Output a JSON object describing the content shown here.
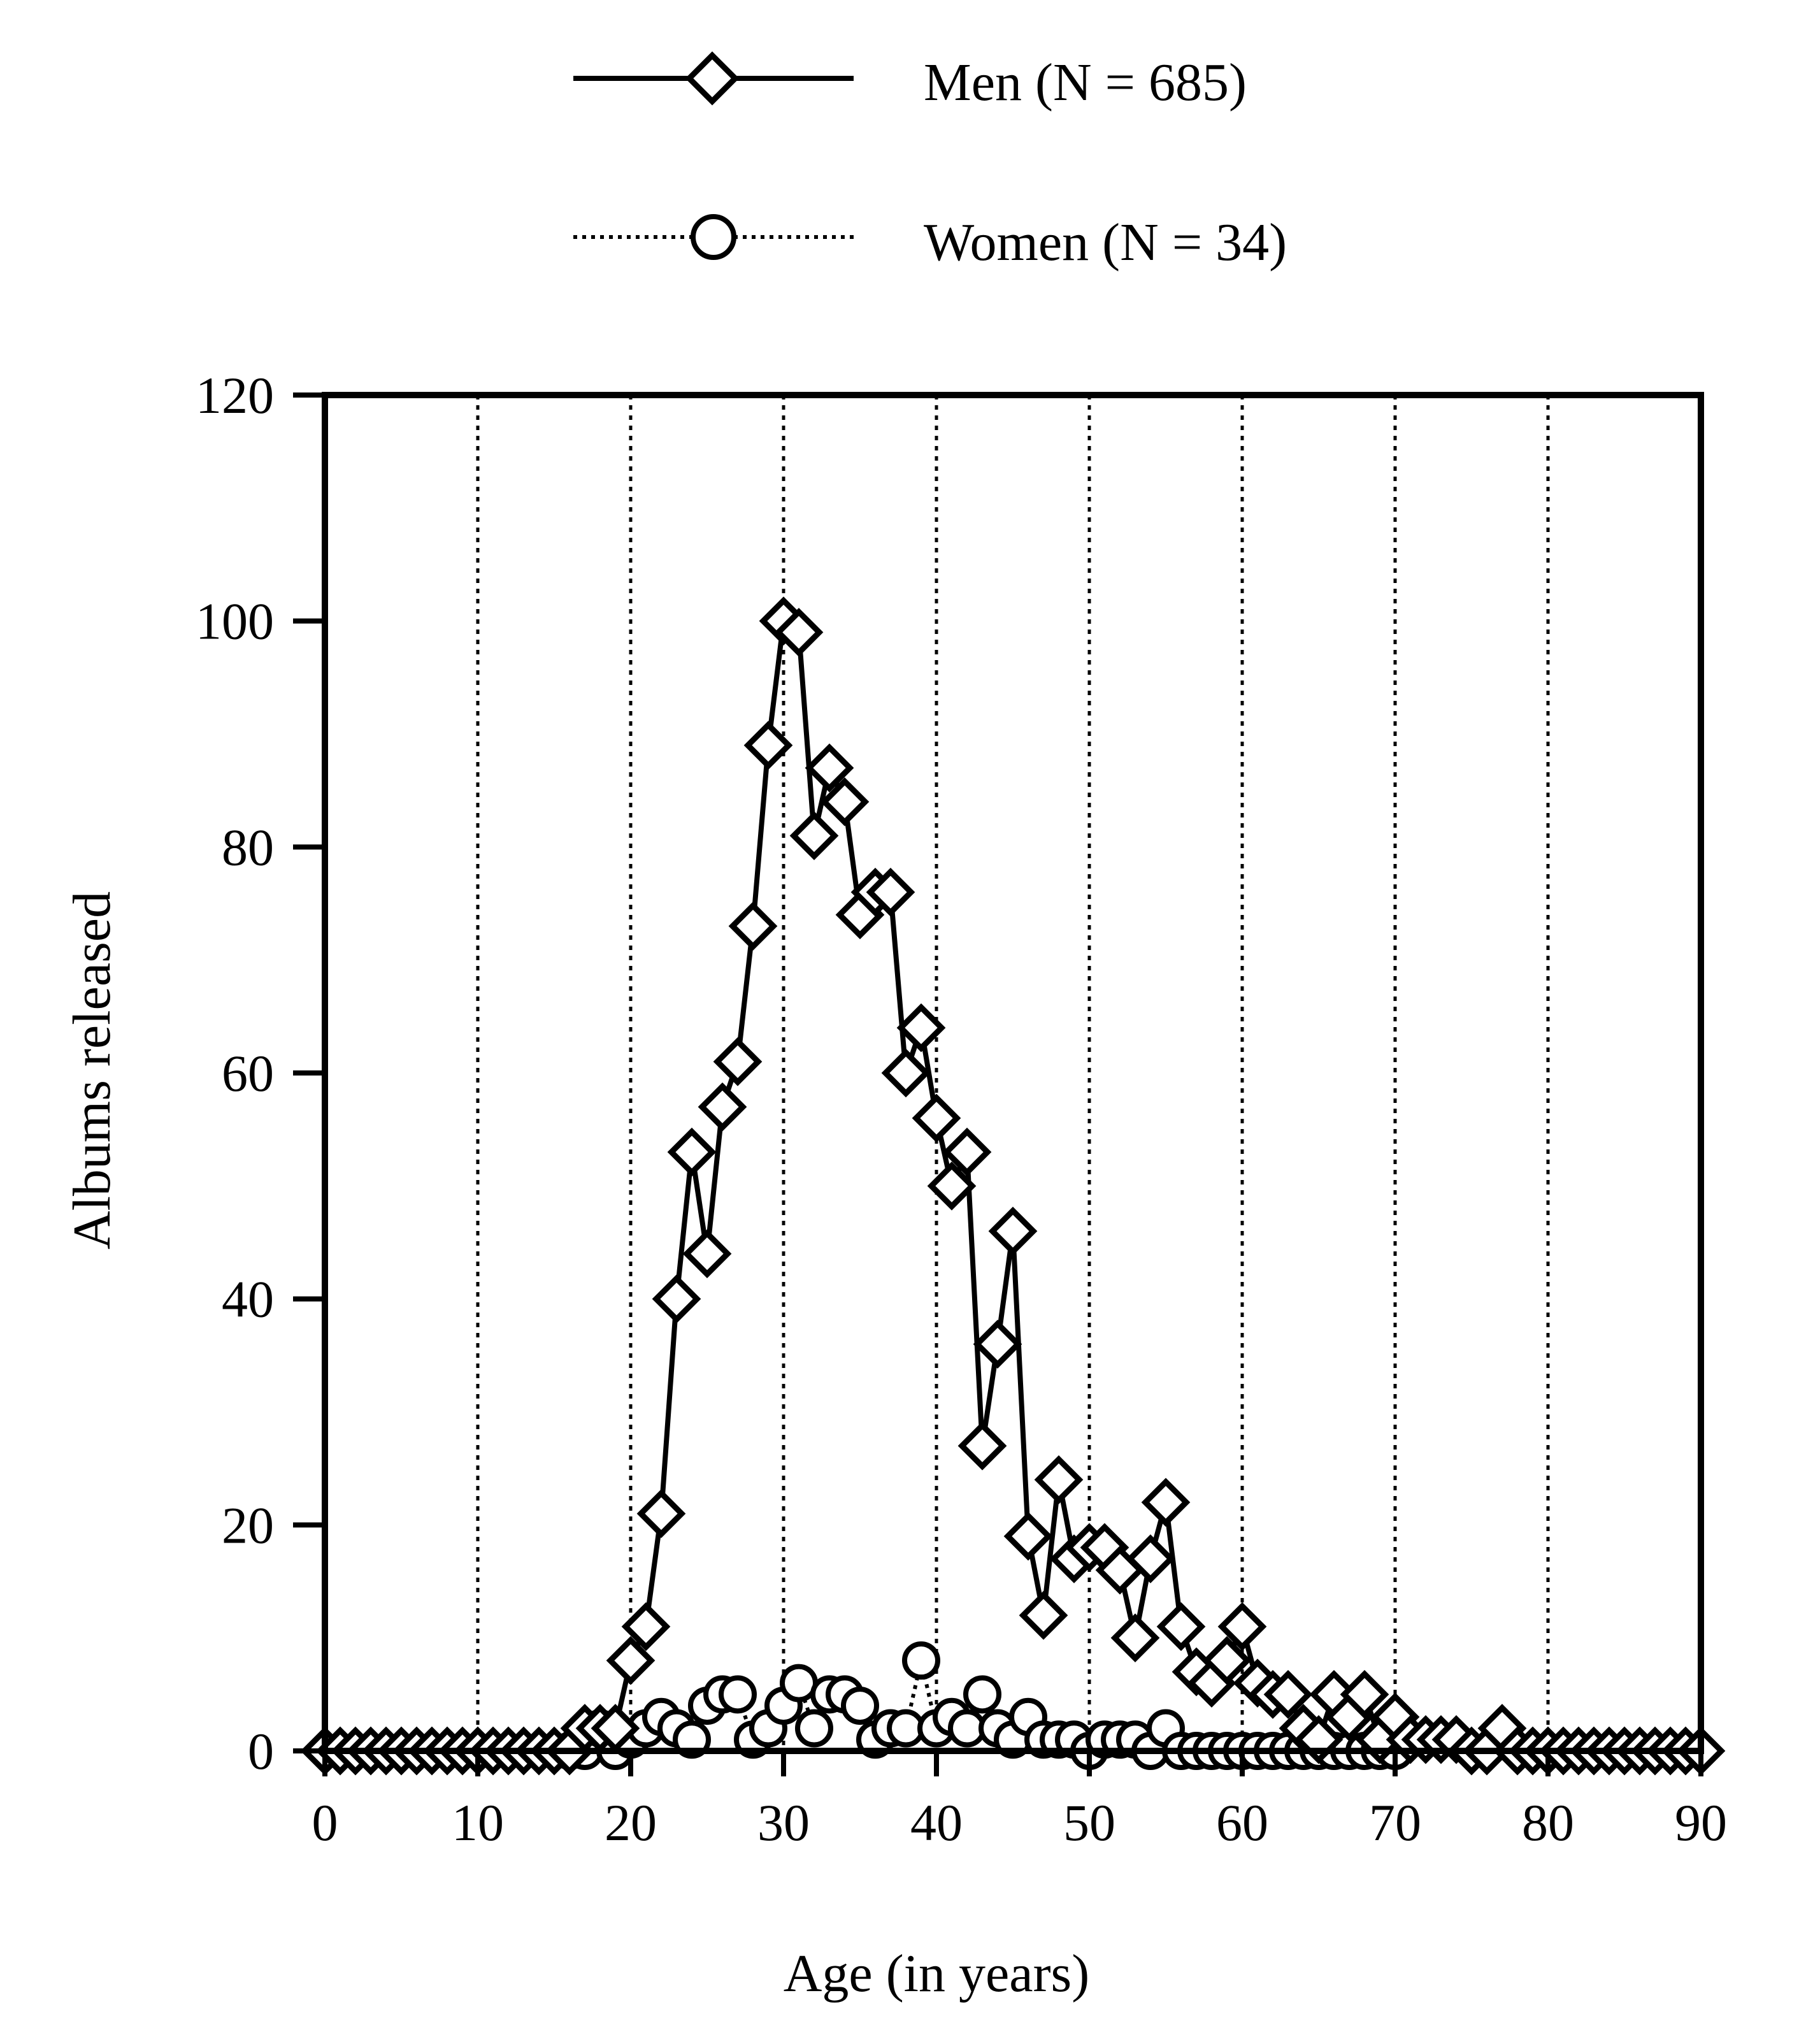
{
  "chart_data": {
    "type": "line",
    "title": "",
    "xlabel": "Age (in years)",
    "ylabel": "Albums released",
    "xlim": [
      0,
      90
    ],
    "ylim": [
      0,
      120
    ],
    "xticks": [
      "0",
      "10",
      "20",
      "30",
      "40",
      "50",
      "60",
      "70",
      "80",
      "90"
    ],
    "yticks": [
      "0",
      "20",
      "40",
      "60",
      "80",
      "100",
      "120"
    ],
    "grid": "vertical dotted at each x tick",
    "legend_placement": "top-center",
    "series": [
      {
        "name": "Men (N = 685)",
        "marker": "diamond",
        "line_style": "solid",
        "x": [
          0,
          1,
          2,
          3,
          4,
          5,
          6,
          7,
          8,
          9,
          10,
          11,
          12,
          13,
          14,
          15,
          16,
          17,
          18,
          19,
          20,
          21,
          22,
          23,
          24,
          25,
          26,
          27,
          28,
          29,
          30,
          31,
          32,
          33,
          34,
          35,
          36,
          37,
          38,
          39,
          40,
          41,
          42,
          43,
          44,
          45,
          46,
          47,
          48,
          49,
          50,
          51,
          52,
          53,
          54,
          55,
          56,
          57,
          58,
          59,
          60,
          61,
          62,
          63,
          64,
          65,
          66,
          67,
          68,
          69,
          70,
          71,
          72,
          73,
          74,
          75,
          76,
          77,
          78,
          79,
          80,
          81,
          82,
          83,
          84,
          85,
          86,
          87,
          88,
          89,
          90
        ],
        "y": [
          0,
          0,
          0,
          0,
          0,
          0,
          0,
          0,
          0,
          0,
          0,
          0,
          0,
          0,
          0,
          0,
          0,
          2,
          2,
          2,
          8,
          11,
          21,
          40,
          53,
          44,
          57,
          61,
          73,
          89,
          100,
          99,
          81,
          87,
          84,
          74,
          76,
          76,
          60,
          64,
          56,
          50,
          53,
          27,
          36,
          46,
          19,
          12,
          24,
          17,
          18,
          18,
          16,
          10,
          17,
          22,
          11,
          7,
          6,
          8,
          11,
          6,
          5,
          5,
          2,
          1,
          5,
          3,
          5,
          1,
          3,
          1,
          1,
          1,
          1,
          0,
          0,
          2,
          0,
          0,
          0,
          0,
          0,
          0,
          0,
          0,
          0,
          0,
          0,
          0,
          0
        ]
      },
      {
        "name": "Women (N = 34)",
        "marker": "circle",
        "line_style": "dotted",
        "x": [
          16,
          17,
          18,
          19,
          20,
          21,
          22,
          23,
          24,
          25,
          26,
          27,
          28,
          29,
          30,
          31,
          32,
          33,
          34,
          35,
          36,
          37,
          38,
          39,
          40,
          41,
          42,
          43,
          44,
          45,
          46,
          47,
          48,
          49,
          50,
          51,
          52,
          53,
          54,
          55,
          56,
          57,
          58,
          59,
          60,
          61,
          62,
          63,
          64,
          65,
          66,
          67,
          68,
          69,
          70
        ],
        "y": [
          0,
          0,
          2,
          0,
          1,
          2,
          3,
          2,
          1,
          4,
          5,
          5,
          1,
          2,
          4,
          6,
          2,
          5,
          5,
          4,
          1,
          2,
          2,
          8,
          2,
          3,
          2,
          5,
          2,
          1,
          3,
          1,
          1,
          1,
          0,
          1,
          1,
          1,
          0,
          2,
          0,
          0,
          0,
          0,
          0,
          0,
          0,
          0,
          0,
          0,
          0,
          0,
          0,
          0,
          0
        ]
      }
    ]
  }
}
